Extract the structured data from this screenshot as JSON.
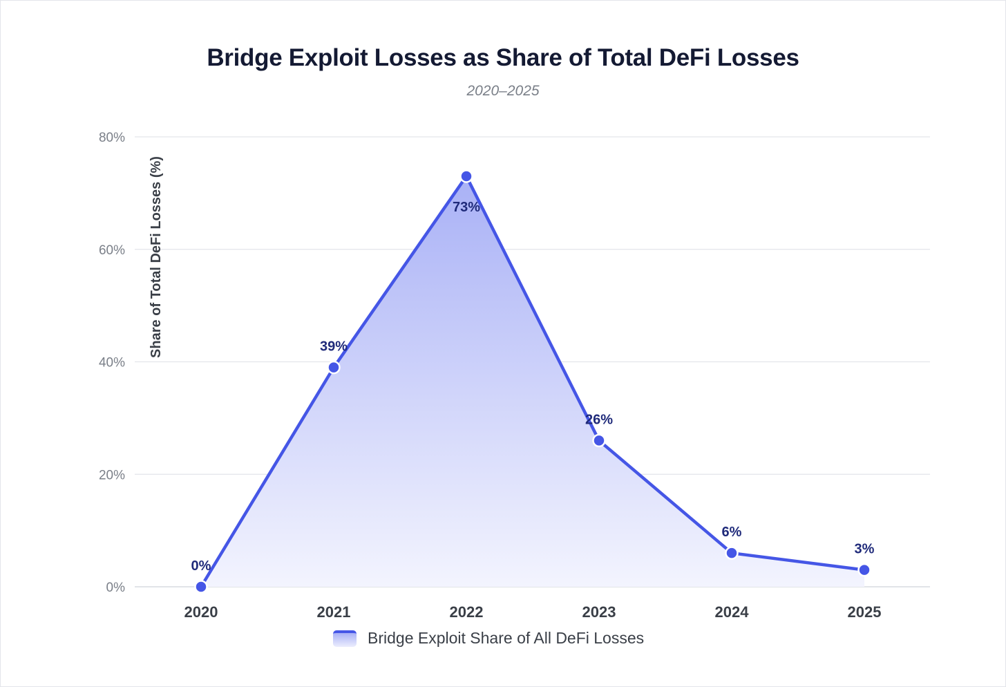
{
  "chart_data": {
    "type": "area",
    "title": "Bridge Exploit Losses as Share of Total DeFi Losses",
    "subtitle": "2020–2025",
    "xlabel": "",
    "ylabel": "Share of Total DeFi Losses (%)",
    "categories": [
      "2020",
      "2021",
      "2022",
      "2023",
      "2024",
      "2025"
    ],
    "series": [
      {
        "name": "Bridge Exploit Share of All DeFi Losses",
        "values": [
          0,
          39,
          73,
          26,
          6,
          3
        ],
        "labels": [
          "0%",
          "39%",
          "73%",
          "26%",
          "6%",
          "3%"
        ]
      }
    ],
    "ylim": [
      0,
      80
    ],
    "yticks": [
      0,
      20,
      40,
      60,
      80
    ],
    "ytick_labels": [
      "0%",
      "20%",
      "40%",
      "60%",
      "80%"
    ],
    "grid": true,
    "legend_position": "bottom-center"
  },
  "colors": {
    "line": "#4556e6",
    "fill_top": "#a9b1f6",
    "fill_bottom": "#f3f4fe",
    "grid": "#e3e5ea",
    "title": "#141a33",
    "data_label": "#1f2a7a"
  }
}
